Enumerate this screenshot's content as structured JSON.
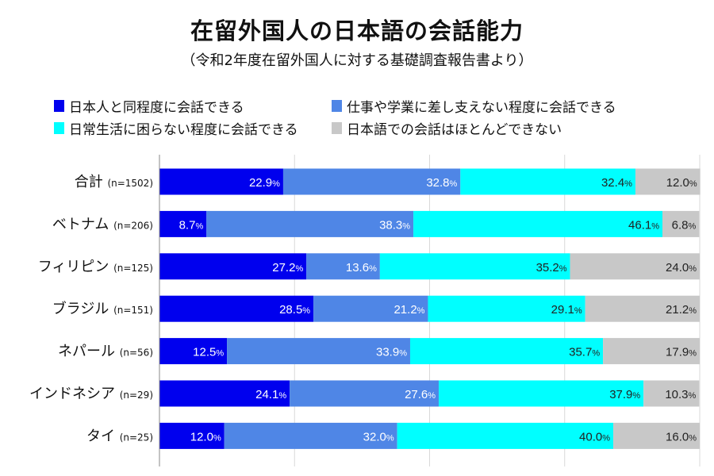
{
  "chart_data": {
    "type": "bar",
    "orientation": "horizontal",
    "stacked": true,
    "title": "在留外国人の日本語の会話能力",
    "subtitle": "（令和2年度在留外国人に対する基礎調査報告書より）",
    "categories": [
      "合計",
      "ベトナム",
      "フィリピン",
      "ブラジル",
      "ネパール",
      "インドネシア",
      "タイ"
    ],
    "sample_sizes": [
      "(n=1502)",
      "(n=206)",
      "(n=125)",
      "(n=151)",
      "(n=56)",
      "(n=29)",
      "(n=25)"
    ],
    "series": [
      {
        "name": "日本人と同程度に会話できる",
        "color": "#0000EE",
        "values": [
          22.9,
          8.7,
          27.2,
          28.5,
          12.5,
          24.1,
          12.0
        ]
      },
      {
        "name": "仕事や学業に差し支えない程度に会話できる",
        "color": "#4F86E6",
        "values": [
          32.8,
          38.3,
          13.6,
          21.2,
          33.9,
          27.6,
          32.0
        ]
      },
      {
        "name": "日常生活に困らない程度に会話できる",
        "color": "#00FFFF",
        "values": [
          32.4,
          46.1,
          35.2,
          29.1,
          35.7,
          37.9,
          40.0
        ]
      },
      {
        "name": "日本語での会話はほとんどできない",
        "color": "#C8C8C8",
        "values": [
          12.0,
          6.8,
          24.0,
          21.2,
          17.9,
          10.3,
          16.0
        ]
      }
    ],
    "label_colors": [
      "#FFFFFF",
      "#FFFFFF",
      "#222222",
      "#222222"
    ],
    "xlim": [
      0,
      100
    ],
    "grid": true,
    "legend": "top"
  }
}
